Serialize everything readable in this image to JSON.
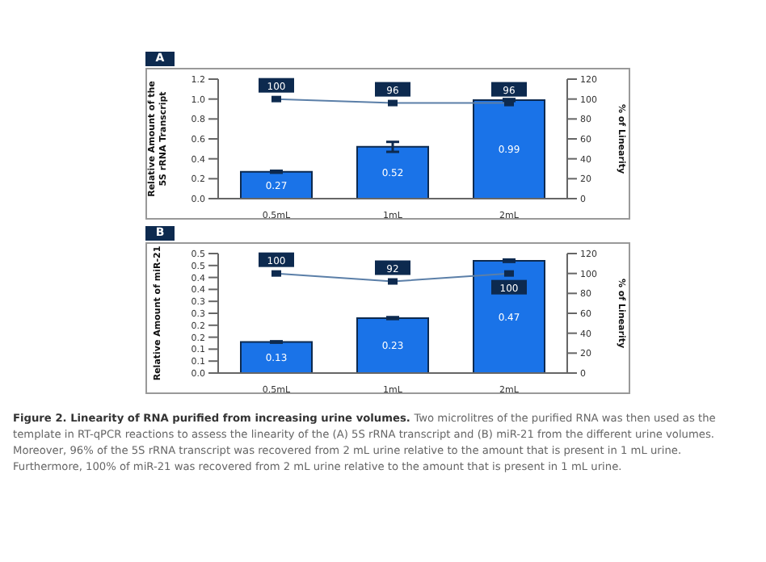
{
  "chart_data": [
    {
      "type": "bar",
      "title": "A",
      "categories": [
        "0.5mL",
        "1mL",
        "2mL"
      ],
      "ylabel": "Relative Amount of the 5S rRNA Transcript",
      "y2label": "% of Linearity",
      "series": [
        {
          "color": "#1a73e8",
          "values": [
            0.27,
            0.52,
            0.99
          ],
          "errors": [
            0.01,
            0.05,
            0.01
          ]
        },
        {
          "type": "line",
          "axis": "y2",
          "color": "#5b7fa8",
          "values": [
            100,
            96,
            96
          ]
        }
      ],
      "ylim": [
        0,
        1.2
      ],
      "yticks": [
        {
          "value": 0,
          "label": "0.0"
        },
        {
          "value": 0.2,
          "label": "0.2"
        },
        {
          "value": 0.4,
          "label": "0.4"
        },
        {
          "value": 0.6,
          "label": "0.6"
        },
        {
          "value": 0.8,
          "label": "0.8"
        },
        {
          "value": 1,
          "label": "1.0"
        },
        {
          "value": 1.2,
          "label": "1.2"
        }
      ],
      "y2lim": [
        0,
        120
      ],
      "y2ticks": [
        0,
        20,
        40,
        60,
        80,
        100,
        120
      ],
      "marker": "square",
      "data_labels": true,
      "grid": false,
      "legend": false
    },
    {
      "type": "bar",
      "title": "B",
      "categories": [
        "0.5mL",
        "1mL",
        "2mL"
      ],
      "ylabel": "Relative Amount of miR-21",
      "y2label": "% of Linearity",
      "series": [
        {
          "color": "#1a73e8",
          "values": [
            0.13,
            0.23,
            0.47
          ],
          "errors": [
            0.003,
            0.004,
            0.005
          ]
        },
        {
          "type": "line",
          "axis": "y2",
          "color": "#5b7fa8",
          "values": [
            100,
            92,
            100
          ]
        }
      ],
      "ylim": [
        0,
        0.5
      ],
      "yticks": [
        {
          "value": 0,
          "label": "0.0"
        },
        {
          "value": 0.05,
          "label": "0.1"
        },
        {
          "value": 0.1,
          "label": "0.1"
        },
        {
          "value": 0.15,
          "label": "0.2"
        },
        {
          "value": 0.2,
          "label": "0.2"
        },
        {
          "value": 0.25,
          "label": "0.3"
        },
        {
          "value": 0.3,
          "label": "0.3"
        },
        {
          "value": 0.35,
          "label": "0.4"
        },
        {
          "value": 0.4,
          "label": "0.4"
        },
        {
          "value": 0.45,
          "label": "0.5"
        },
        {
          "value": 0.5,
          "label": "0.5"
        }
      ],
      "y2lim": [
        0,
        120
      ],
      "y2ticks": [
        0,
        20,
        40,
        60,
        80,
        100,
        120
      ],
      "marker": "square",
      "data_labels": true,
      "grid": false,
      "legend": false,
      "annotations": [
        "Figure 2. Linearity of RNA purified from increasing urine volumes.",
        "Two microlitres of the purified RNA was then used as the template in RT-qPCR reactions to assess the linearity of the (A) 5S rRNA transcript and (B) miR-21 from the different urine volumes.",
        "Moreover, 96% of the 5S rRNA transcript was recovered from 2 mL urine relative to the amount that is present in 1 mL urine.",
        "Furthermore, 100% of miR-21 was recovered from 2 mL urine relative to the amount that is present in 1 mL urine."
      ]
    }
  ]
}
